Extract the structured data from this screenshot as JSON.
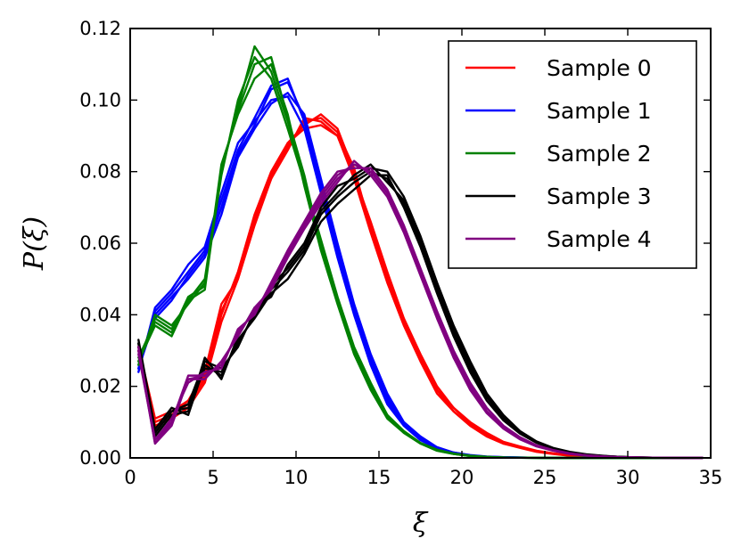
{
  "chart_data": {
    "type": "line",
    "title": "",
    "xlabel": "ξ",
    "ylabel": "P(ξ)",
    "xlim": [
      0,
      35
    ],
    "ylim": [
      0,
      0.12
    ],
    "xticks": [
      0,
      5,
      10,
      15,
      20,
      25,
      30,
      35
    ],
    "yticks": [
      0.0,
      0.02,
      0.04,
      0.06,
      0.08,
      0.1,
      0.12
    ],
    "xtick_labels": [
      "0",
      "5",
      "10",
      "15",
      "20",
      "25",
      "30",
      "35"
    ],
    "ytick_labels": [
      "0.00",
      "0.02",
      "0.04",
      "0.06",
      "0.08",
      "0.10",
      "0.12"
    ],
    "grid": false,
    "legend_position": "top-right",
    "x": [
      0.5,
      1.5,
      2.5,
      3.5,
      4.5,
      5.5,
      6.5,
      7.5,
      8.5,
      9.5,
      10.5,
      11.5,
      12.5,
      13.5,
      14.5,
      15.5,
      16.5,
      17.5,
      18.5,
      19.5,
      20.5,
      21.5,
      22.5,
      23.5,
      24.5,
      25.5,
      26.5,
      27.5,
      28.5,
      29.5,
      30.5,
      31.5,
      32.5,
      33.5,
      34.5
    ],
    "series": [
      {
        "name": "Sample 0",
        "color": "#ff0000",
        "runs": [
          [
            0.03,
            0.01,
            0.012,
            0.015,
            0.022,
            0.04,
            0.052,
            0.068,
            0.08,
            0.088,
            0.093,
            0.096,
            0.092,
            0.08,
            0.065,
            0.05,
            0.038,
            0.028,
            0.019,
            0.013,
            0.009,
            0.006,
            0.004,
            0.003,
            0.0018,
            0.0012,
            0.0007,
            0.0004,
            0.0002,
            0.0001,
            5e-05,
            3e-05,
            1e-05,
            0.0,
            0.0
          ],
          [
            0.031,
            0.011,
            0.013,
            0.016,
            0.024,
            0.043,
            0.05,
            0.065,
            0.078,
            0.086,
            0.095,
            0.094,
            0.09,
            0.079,
            0.066,
            0.052,
            0.039,
            0.029,
            0.02,
            0.014,
            0.01,
            0.007,
            0.0045,
            0.0032,
            0.002,
            0.0013,
            0.0008,
            0.0004,
            0.0002,
            0.0001,
            5e-05,
            3e-05,
            1e-05,
            0.0,
            0.0
          ],
          [
            0.03,
            0.009,
            0.011,
            0.014,
            0.021,
            0.038,
            0.05,
            0.066,
            0.078,
            0.088,
            0.092,
            0.093,
            0.09,
            0.078,
            0.063,
            0.049,
            0.037,
            0.027,
            0.018,
            0.013,
            0.009,
            0.006,
            0.004,
            0.0028,
            0.0017,
            0.0011,
            0.0006,
            0.0003,
            0.0002,
            0.0001,
            5e-05,
            2e-05,
            1e-05,
            0.0,
            0.0
          ],
          [
            0.031,
            0.01,
            0.012,
            0.016,
            0.023,
            0.041,
            0.051,
            0.067,
            0.079,
            0.087,
            0.094,
            0.095,
            0.091,
            0.081,
            0.064,
            0.051,
            0.038,
            0.028,
            0.019,
            0.014,
            0.0095,
            0.0065,
            0.0042,
            0.003,
            0.0019,
            0.0012,
            0.0007,
            0.0004,
            0.0002,
            0.0001,
            5e-05,
            3e-05,
            1e-05,
            0.0,
            0.0
          ]
        ]
      },
      {
        "name": "Sample 1",
        "color": "#0000ff",
        "runs": [
          [
            0.025,
            0.041,
            0.046,
            0.052,
            0.058,
            0.072,
            0.086,
            0.095,
            0.104,
            0.106,
            0.094,
            0.076,
            0.058,
            0.041,
            0.027,
            0.016,
            0.009,
            0.005,
            0.0028,
            0.0014,
            0.0007,
            0.0003,
            0.0002,
            0.0001,
            5e-05,
            2e-05,
            0.0,
            0.0,
            0.0,
            0.0,
            0.0,
            0.0,
            0.0,
            0.0,
            0.0
          ],
          [
            0.026,
            0.04,
            0.045,
            0.05,
            0.056,
            0.068,
            0.084,
            0.092,
            0.099,
            0.102,
            0.096,
            0.078,
            0.06,
            0.043,
            0.029,
            0.018,
            0.01,
            0.006,
            0.003,
            0.0015,
            0.0008,
            0.0004,
            0.0002,
            0.0001,
            5e-05,
            2e-05,
            0.0,
            0.0,
            0.0,
            0.0,
            0.0,
            0.0,
            0.0,
            0.0,
            0.0
          ],
          [
            0.024,
            0.042,
            0.047,
            0.054,
            0.059,
            0.074,
            0.088,
            0.094,
            0.1,
            0.101,
            0.092,
            0.074,
            0.056,
            0.04,
            0.026,
            0.015,
            0.009,
            0.005,
            0.0026,
            0.0013,
            0.0006,
            0.0003,
            0.0001,
            5e-05,
            2e-05,
            0.0,
            0.0,
            0.0,
            0.0,
            0.0,
            0.0,
            0.0,
            0.0,
            0.0,
            0.0
          ],
          [
            0.025,
            0.039,
            0.044,
            0.051,
            0.057,
            0.07,
            0.085,
            0.093,
            0.103,
            0.105,
            0.095,
            0.077,
            0.059,
            0.042,
            0.028,
            0.017,
            0.0095,
            0.0055,
            0.0029,
            0.0015,
            0.0007,
            0.0003,
            0.0002,
            0.0001,
            5e-05,
            2e-05,
            0.0,
            0.0,
            0.0,
            0.0,
            0.0,
            0.0,
            0.0,
            0.0,
            0.0
          ]
        ]
      },
      {
        "name": "Sample 2",
        "color": "#008000",
        "runs": [
          [
            0.027,
            0.039,
            0.036,
            0.044,
            0.05,
            0.08,
            0.098,
            0.115,
            0.108,
            0.094,
            0.078,
            0.06,
            0.044,
            0.03,
            0.02,
            0.012,
            0.007,
            0.004,
            0.0022,
            0.0012,
            0.0006,
            0.0003,
            0.0001,
            5e-05,
            2e-05,
            0.0,
            0.0,
            0.0,
            0.0,
            0.0,
            0.0,
            0.0,
            0.0,
            0.0,
            0.0
          ],
          [
            0.028,
            0.038,
            0.035,
            0.045,
            0.048,
            0.082,
            0.096,
            0.106,
            0.11,
            0.096,
            0.076,
            0.058,
            0.043,
            0.029,
            0.019,
            0.011,
            0.007,
            0.004,
            0.002,
            0.0011,
            0.0005,
            0.0002,
            0.0001,
            5e-05,
            2e-05,
            0.0,
            0.0,
            0.0,
            0.0,
            0.0,
            0.0,
            0.0,
            0.0,
            0.0,
            0.0
          ],
          [
            0.026,
            0.04,
            0.037,
            0.043,
            0.049,
            0.079,
            0.1,
            0.112,
            0.106,
            0.092,
            0.077,
            0.061,
            0.045,
            0.031,
            0.021,
            0.012,
            0.0075,
            0.0042,
            0.0023,
            0.0012,
            0.0006,
            0.0003,
            0.0001,
            5e-05,
            2e-05,
            0.0,
            0.0,
            0.0,
            0.0,
            0.0,
            0.0,
            0.0,
            0.0,
            0.0,
            0.0
          ],
          [
            0.027,
            0.037,
            0.034,
            0.044,
            0.047,
            0.081,
            0.097,
            0.11,
            0.112,
            0.095,
            0.079,
            0.059,
            0.044,
            0.03,
            0.02,
            0.0115,
            0.0072,
            0.0041,
            0.0021,
            0.0011,
            0.0005,
            0.0002,
            0.0001,
            5e-05,
            2e-05,
            0.0,
            0.0,
            0.0,
            0.0,
            0.0,
            0.0,
            0.0,
            0.0,
            0.0,
            0.0
          ]
        ]
      },
      {
        "name": "Sample 3",
        "color": "#000000",
        "runs": [
          [
            0.032,
            0.007,
            0.013,
            0.014,
            0.025,
            0.024,
            0.032,
            0.04,
            0.047,
            0.052,
            0.058,
            0.068,
            0.073,
            0.077,
            0.08,
            0.078,
            0.071,
            0.06,
            0.047,
            0.035,
            0.025,
            0.017,
            0.011,
            0.007,
            0.0044,
            0.0027,
            0.0016,
            0.0009,
            0.0005,
            0.0003,
            0.00015,
            8e-05,
            4e-05,
            2e-05,
            0.0
          ],
          [
            0.031,
            0.006,
            0.012,
            0.013,
            0.028,
            0.022,
            0.034,
            0.042,
            0.045,
            0.054,
            0.06,
            0.07,
            0.076,
            0.078,
            0.081,
            0.08,
            0.073,
            0.062,
            0.049,
            0.037,
            0.027,
            0.018,
            0.012,
            0.0075,
            0.0046,
            0.0028,
            0.0017,
            0.001,
            0.0006,
            0.0003,
            0.00015,
            8e-05,
            4e-05,
            2e-05,
            0.0
          ],
          [
            0.033,
            0.008,
            0.014,
            0.012,
            0.026,
            0.023,
            0.033,
            0.039,
            0.046,
            0.05,
            0.057,
            0.066,
            0.071,
            0.075,
            0.079,
            0.079,
            0.07,
            0.059,
            0.046,
            0.034,
            0.024,
            0.016,
            0.0105,
            0.0068,
            0.0042,
            0.0026,
            0.0015,
            0.0009,
            0.0005,
            0.0003,
            0.00014,
            7e-05,
            3e-05,
            1e-05,
            0.0
          ],
          [
            0.032,
            0.007,
            0.013,
            0.015,
            0.027,
            0.025,
            0.031,
            0.041,
            0.048,
            0.053,
            0.059,
            0.069,
            0.074,
            0.079,
            0.082,
            0.077,
            0.072,
            0.061,
            0.048,
            0.036,
            0.026,
            0.0175,
            0.0115,
            0.0072,
            0.0045,
            0.0027,
            0.0016,
            0.0009,
            0.0005,
            0.0003,
            0.00015,
            8e-05,
            4e-05,
            2e-05,
            0.0
          ]
        ]
      },
      {
        "name": "Sample 4",
        "color": "#800080",
        "runs": [
          [
            0.03,
            0.004,
            0.01,
            0.022,
            0.023,
            0.026,
            0.035,
            0.041,
            0.048,
            0.057,
            0.065,
            0.072,
            0.078,
            0.082,
            0.08,
            0.074,
            0.064,
            0.052,
            0.04,
            0.029,
            0.02,
            0.013,
            0.0085,
            0.0055,
            0.0034,
            0.0021,
            0.0012,
            0.0007,
            0.0004,
            0.0002,
            0.0001,
            5e-05,
            2e-05,
            1e-05,
            0.0
          ],
          [
            0.029,
            0.005,
            0.011,
            0.021,
            0.024,
            0.025,
            0.036,
            0.04,
            0.049,
            0.058,
            0.066,
            0.074,
            0.08,
            0.081,
            0.081,
            0.075,
            0.065,
            0.053,
            0.041,
            0.03,
            0.021,
            0.014,
            0.009,
            0.0058,
            0.0035,
            0.0022,
            0.0013,
            0.0007,
            0.0004,
            0.0002,
            0.0001,
            5e-05,
            2e-05,
            1e-05,
            0.0
          ],
          [
            0.031,
            0.004,
            0.009,
            0.022,
            0.022,
            0.027,
            0.034,
            0.042,
            0.047,
            0.056,
            0.064,
            0.071,
            0.077,
            0.083,
            0.079,
            0.073,
            0.063,
            0.051,
            0.039,
            0.028,
            0.019,
            0.0125,
            0.0082,
            0.0052,
            0.0032,
            0.002,
            0.0011,
            0.0006,
            0.0003,
            0.0002,
            0.0001,
            5e-05,
            2e-05,
            1e-05,
            0.0
          ],
          [
            0.03,
            0.005,
            0.01,
            0.023,
            0.023,
            0.026,
            0.035,
            0.041,
            0.048,
            0.057,
            0.065,
            0.073,
            0.079,
            0.082,
            0.08,
            0.074,
            0.064,
            0.052,
            0.04,
            0.029,
            0.02,
            0.013,
            0.0086,
            0.0056,
            0.0034,
            0.0021,
            0.0012,
            0.0007,
            0.0004,
            0.0002,
            0.0001,
            5e-05,
            2e-05,
            1e-05,
            0.0
          ]
        ]
      }
    ]
  }
}
